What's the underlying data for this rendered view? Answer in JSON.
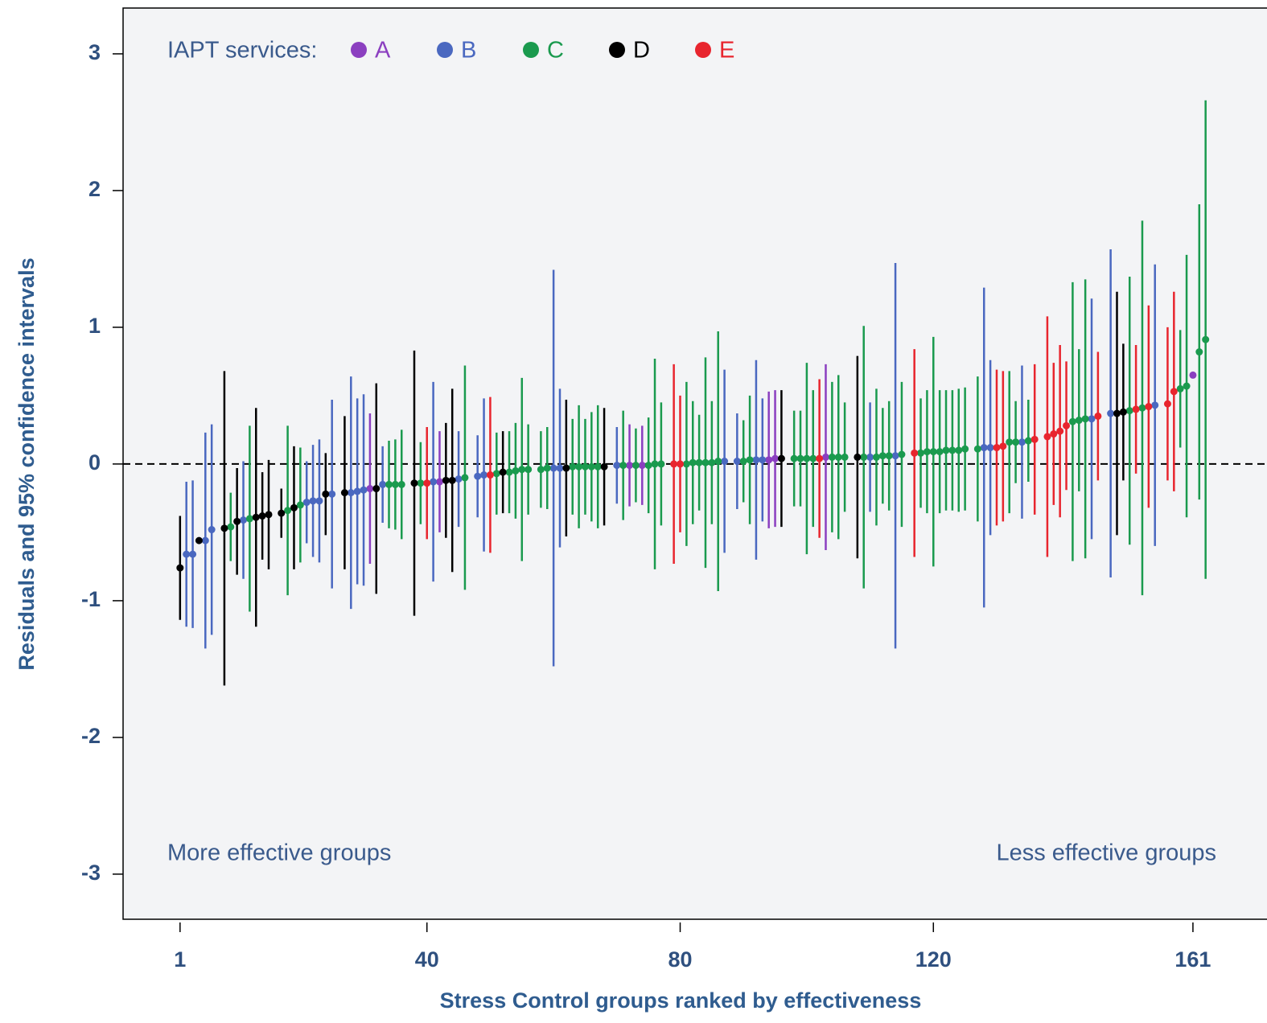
{
  "chart_data": {
    "type": "errorbar",
    "ylabel": "Residuals and 95% confidence intervals",
    "xlabel": "Stress Control groups ranked by effectiveness",
    "legend_title": "IAPT services:",
    "legend_position": "upper left",
    "annotations": [
      "More effective groups",
      "Less effective groups"
    ],
    "reference_line": 0,
    "xlim": [
      -8,
      172.7
    ],
    "ylim": [
      -3.33,
      3.335
    ],
    "xticks": [
      1,
      40,
      80,
      120,
      161
    ],
    "yticks": [
      -3,
      -2,
      -1,
      0,
      1,
      2,
      3
    ],
    "series": [
      {
        "name": "A",
        "color": "#8b3fc0",
        "x": [
          31,
          42,
          72,
          74,
          94,
          95,
          103,
          161
        ],
        "values": [
          -0.18,
          -0.13,
          -0.01,
          -0.01,
          0.03,
          0.04,
          0.05,
          0.65
        ],
        "errors": [
          0.55,
          0.37,
          0.3,
          0.29,
          0.5,
          0.5,
          0.68,
          0
        ]
      },
      {
        "name": "B",
        "color": "#4a68c0",
        "x": [
          2,
          3,
          5,
          6,
          11,
          21,
          22,
          23,
          25,
          28,
          29,
          30,
          33,
          41,
          45,
          48,
          49,
          60,
          61,
          70,
          87,
          89,
          92,
          93,
          110,
          114,
          128,
          129,
          134,
          145,
          148,
          155
        ],
        "values": [
          -0.66,
          -0.66,
          -0.56,
          -0.48,
          -0.41,
          -0.28,
          -0.27,
          -0.27,
          -0.22,
          -0.21,
          -0.2,
          -0.19,
          -0.15,
          -0.13,
          -0.11,
          -0.09,
          -0.08,
          -0.03,
          -0.03,
          -0.01,
          0.02,
          0.02,
          0.03,
          0.03,
          0.05,
          0.06,
          0.12,
          0.12,
          0.16,
          0.33,
          0.37,
          0.43
        ],
        "errors": [
          0.53,
          0.54,
          0.79,
          0.77,
          0.43,
          0.3,
          0.41,
          0.45,
          0.69,
          0.85,
          0.68,
          0.7,
          0.28,
          0.73,
          0.35,
          0.3,
          0.56,
          1.45,
          0.58,
          0.28,
          0.67,
          0.35,
          0.73,
          0.45,
          0.4,
          1.41,
          1.17,
          0.64,
          0.56,
          0.88,
          1.2,
          1.03
        ]
      },
      {
        "name": "C",
        "color": "#1a9a4e",
        "x": [
          9,
          12,
          18,
          20,
          34,
          35,
          36,
          39,
          46,
          51,
          53,
          54,
          55,
          56,
          58,
          59,
          63,
          64,
          65,
          66,
          67,
          71,
          73,
          75,
          76,
          77,
          81,
          82,
          83,
          84,
          85,
          86,
          90,
          91,
          98,
          99,
          100,
          101,
          104,
          105,
          106,
          109,
          111,
          112,
          113,
          115,
          118,
          119,
          120,
          121,
          122,
          123,
          124,
          125,
          127,
          132,
          133,
          135,
          142,
          143,
          144,
          151,
          153,
          159,
          160,
          162,
          163
        ],
        "values": [
          -0.46,
          -0.4,
          -0.34,
          -0.3,
          -0.15,
          -0.15,
          -0.15,
          -0.14,
          -0.1,
          -0.07,
          -0.06,
          -0.05,
          -0.04,
          -0.04,
          -0.04,
          -0.03,
          -0.02,
          -0.02,
          -0.02,
          -0.02,
          -0.02,
          -0.01,
          -0.01,
          -0.01,
          0,
          0,
          0,
          0.01,
          0.01,
          0.01,
          0.01,
          0.02,
          0.02,
          0.03,
          0.04,
          0.04,
          0.04,
          0.04,
          0.05,
          0.05,
          0.05,
          0.05,
          0.05,
          0.06,
          0.06,
          0.07,
          0.08,
          0.09,
          0.09,
          0.09,
          0.1,
          0.1,
          0.1,
          0.11,
          0.11,
          0.16,
          0.16,
          0.17,
          0.31,
          0.32,
          0.33,
          0.39,
          0.41,
          0.55,
          0.57,
          0.82,
          0.91
        ],
        "errors": [
          0.25,
          0.68,
          0.62,
          0.42,
          0.32,
          0.33,
          0.4,
          0.3,
          0.82,
          0.3,
          0.3,
          0.35,
          0.67,
          0.33,
          0.28,
          0.3,
          0.35,
          0.45,
          0.35,
          0.4,
          0.45,
          0.4,
          0.27,
          0.35,
          0.77,
          0.45,
          0.6,
          0.45,
          0.35,
          0.77,
          0.45,
          0.95,
          0.3,
          0.47,
          0.35,
          0.35,
          0.7,
          0.5,
          0.55,
          0.6,
          0.4,
          0.96,
          0.5,
          0.35,
          0.4,
          0.53,
          0.4,
          0.45,
          0.84,
          0.45,
          0.44,
          0.44,
          0.45,
          0.45,
          0.53,
          0.52,
          0.3,
          0.3,
          1.02,
          0.52,
          1.02,
          0.98,
          1.37,
          0.43,
          0.96,
          1.08,
          1.75
        ]
      },
      {
        "name": "D",
        "color": "#000000",
        "x": [
          1,
          4,
          8,
          10,
          13,
          14,
          15,
          17,
          19,
          24,
          27,
          32,
          38,
          43,
          44,
          52,
          62,
          68,
          96,
          108,
          149,
          150
        ],
        "values": [
          -0.76,
          -0.56,
          -0.47,
          -0.42,
          -0.39,
          -0.38,
          -0.37,
          -0.36,
          -0.32,
          -0.22,
          -0.21,
          -0.18,
          -0.14,
          -0.12,
          -0.12,
          -0.06,
          -0.03,
          -0.02,
          0.04,
          0.05,
          0.37,
          0.38
        ],
        "errors": [
          0.38,
          0,
          1.15,
          0.39,
          0.8,
          0.32,
          0.4,
          0.18,
          0.45,
          0.3,
          0.56,
          0.77,
          0.97,
          0.42,
          0.67,
          0.3,
          0.5,
          0.43,
          0.5,
          0.74,
          0.89,
          0.5
        ]
      },
      {
        "name": "E",
        "color": "#e8252e",
        "x": [
          40,
          50,
          79,
          80,
          102,
          117,
          130,
          131,
          136,
          138,
          139,
          140,
          141,
          146,
          152,
          154,
          157,
          158
        ],
        "values": [
          -0.14,
          -0.08,
          0,
          0,
          0.04,
          0.08,
          0.12,
          0.13,
          0.18,
          0.2,
          0.22,
          0.24,
          0.28,
          0.35,
          0.4,
          0.42,
          0.44,
          0.53
        ],
        "errors": [
          0.41,
          0.57,
          0.73,
          0.5,
          0.58,
          0.76,
          0.57,
          0.55,
          0.55,
          0.88,
          0.52,
          0.63,
          0.47,
          0.47,
          0.47,
          0.74,
          0.56,
          0.73
        ]
      }
    ]
  }
}
